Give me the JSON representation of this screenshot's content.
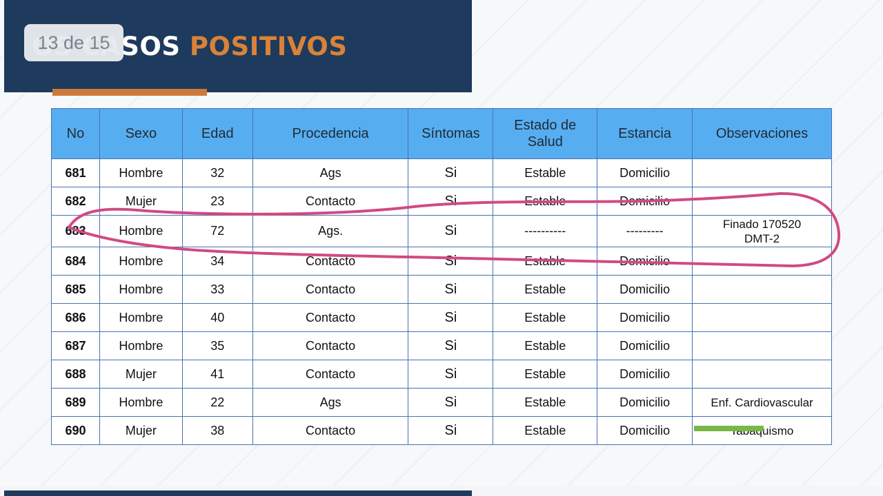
{
  "slide": {
    "title_part1": "OS CASOS ",
    "title_part2": "POSITIVOS",
    "page_indicator": "13 de 15",
    "accent_color": "#d9823a",
    "header_color": "#1e3a5c"
  },
  "table": {
    "headers": {
      "no": "No",
      "sexo": "Sexo",
      "edad": "Edad",
      "procedencia": "Procedencia",
      "sintomas": "Síntomas",
      "estado_line1": "Estado de",
      "estado_line2": "Salud",
      "estancia": "Estancia",
      "observaciones": "Observaciones"
    },
    "rows": [
      {
        "no": "681",
        "sexo": "Hombre",
        "edad": "32",
        "procedencia": "Ags",
        "sintomas": "Si",
        "estado": "Estable",
        "estancia": "Domicilio",
        "obs_line1": "",
        "obs_line2": ""
      },
      {
        "no": "682",
        "sexo": "Mujer",
        "edad": "23",
        "procedencia": "Contacto",
        "sintomas": "Si",
        "estado": "Estable",
        "estancia": "Domicilio",
        "obs_line1": "",
        "obs_line2": ""
      },
      {
        "no": "683",
        "sexo": "Hombre",
        "edad": "72",
        "procedencia": "Ags.",
        "sintomas": "Si",
        "estado": "----------",
        "estancia": "---------",
        "obs_line1": "Finado 170520",
        "obs_line2": "DMT-2"
      },
      {
        "no": "684",
        "sexo": "Hombre",
        "edad": "34",
        "procedencia": "Contacto",
        "sintomas": "Si",
        "estado": "Estable",
        "estancia": "Domicilio",
        "obs_line1": "",
        "obs_line2": ""
      },
      {
        "no": "685",
        "sexo": "Hombre",
        "edad": "33",
        "procedencia": "Contacto",
        "sintomas": "Si",
        "estado": "Estable",
        "estancia": "Domicilio",
        "obs_line1": "",
        "obs_line2": ""
      },
      {
        "no": "686",
        "sexo": "Hombre",
        "edad": "40",
        "procedencia": "Contacto",
        "sintomas": "Si",
        "estado": "Estable",
        "estancia": "Domicilio",
        "obs_line1": "",
        "obs_line2": ""
      },
      {
        "no": "687",
        "sexo": "Hombre",
        "edad": "35",
        "procedencia": "Contacto",
        "sintomas": "Si",
        "estado": "Estable",
        "estancia": "Domicilio",
        "obs_line1": "",
        "obs_line2": ""
      },
      {
        "no": "688",
        "sexo": "Mujer",
        "edad": "41",
        "procedencia": "Contacto",
        "sintomas": "Si",
        "estado": "Estable",
        "estancia": "Domicilio",
        "obs_line1": "",
        "obs_line2": ""
      },
      {
        "no": "689",
        "sexo": "Hombre",
        "edad": "22",
        "procedencia": "Ags",
        "sintomas": "Si",
        "estado": "Estable",
        "estancia": "Domicilio",
        "obs_line1": "Enf. Cardiovascular",
        "obs_line2": ""
      },
      {
        "no": "690",
        "sexo": "Mujer",
        "edad": "38",
        "procedencia": "Contacto",
        "sintomas": "Si",
        "estado": "Estable",
        "estancia": "Domicilio",
        "obs_line1": "Tabaquismo",
        "obs_line2": ""
      }
    ]
  },
  "annotations": {
    "circle_color": "#d14a82",
    "highlight_color": "#7ab648"
  }
}
